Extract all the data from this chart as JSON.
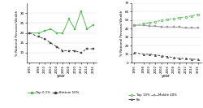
{
  "years_left": [
    1995,
    1998,
    2000,
    2002,
    2004,
    2006,
    2008,
    2010,
    2012,
    2014,
    2016
  ],
  "top01_left": [
    20,
    20,
    21,
    22,
    20,
    20,
    27,
    22,
    31,
    22,
    24
  ],
  "bot50_left": [
    20,
    18,
    17,
    15,
    13,
    11,
    11,
    11,
    10,
    12,
    12
  ],
  "years_right": [
    1995,
    1998,
    2000,
    2002,
    2004,
    2006,
    2008,
    2010,
    2012,
    2014,
    2016
  ],
  "top10_right": [
    44,
    46,
    47,
    48,
    50,
    51,
    52,
    53,
    54,
    55,
    57
  ],
  "mid40_right": [
    44,
    44,
    43,
    43,
    42,
    42,
    42,
    42,
    41,
    41,
    41
  ],
  "bot50_right": [
    12,
    10,
    10,
    9,
    8,
    7,
    6,
    5,
    5,
    4,
    4
  ],
  "color_green": "#5cb85c",
  "color_black": "#444444",
  "color_gray": "#999999",
  "ylabel_left": "% National Personal Wealth",
  "ylabel_right": "% National Personal Wealth",
  "xlabel": "year",
  "ylim_left": [
    5,
    35
  ],
  "ylim_right": [
    0,
    70
  ],
  "yticks_left": [
    10,
    15,
    20,
    25,
    30
  ],
  "yticks_right": [
    0,
    10,
    20,
    30,
    40,
    50,
    60,
    70
  ],
  "legend_left": [
    "Top 0.1%",
    "Bottom 50%"
  ],
  "legend_right": [
    "Top 10%",
    "Bo",
    "Middle 40%"
  ]
}
